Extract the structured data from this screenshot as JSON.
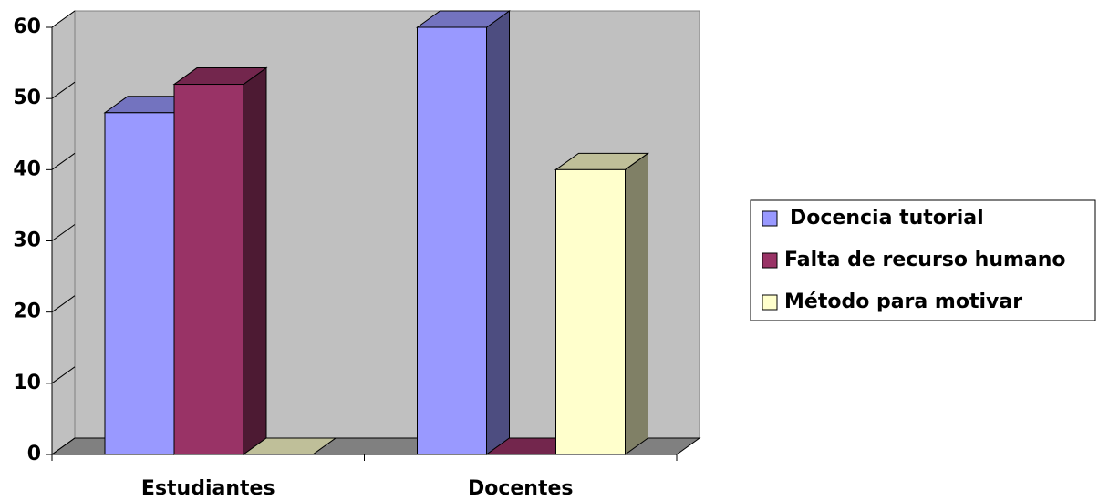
{
  "chart_data": {
    "type": "bar3d",
    "categories": [
      "Estudiantes",
      "Docentes"
    ],
    "series": [
      {
        "name": "Docencia tutorial",
        "color": "#9999ff",
        "values": [
          48,
          60
        ]
      },
      {
        "name": "Falta de recurso humano",
        "color": "#993366",
        "values": [
          52,
          0
        ]
      },
      {
        "name": "Método para motivar",
        "color": "#ffffcc",
        "values": [
          0,
          40
        ]
      }
    ],
    "ylim": [
      0,
      60
    ],
    "yticks": [
      0,
      10,
      20,
      30,
      40,
      50,
      60
    ],
    "legend": "right"
  }
}
